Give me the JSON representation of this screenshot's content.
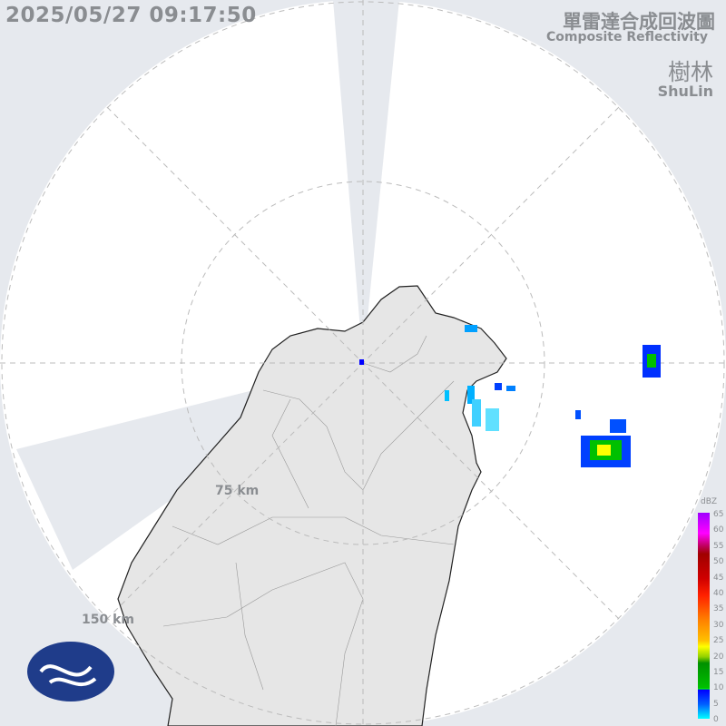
{
  "timestamp": "2025/05/27 09:17:50",
  "title_zh": "單雷達合成回波圖",
  "title_en": "Composite Reflectivity",
  "station_zh": "樹林",
  "station_en": "ShuLin",
  "range_rings": [
    "75 km",
    "150 km"
  ],
  "legend": {
    "unit": "dBZ",
    "ticks": [
      "65",
      "60",
      "55",
      "50",
      "45",
      "40",
      "35",
      "30",
      "25",
      "20",
      "15",
      "10",
      "5",
      "0"
    ]
  },
  "colors": {
    "background": "#e6e9ee",
    "coverage": "#ffffff",
    "land": "#e8e8e8",
    "text": "#8a8d91"
  },
  "logo": "CWA cloud emblem"
}
